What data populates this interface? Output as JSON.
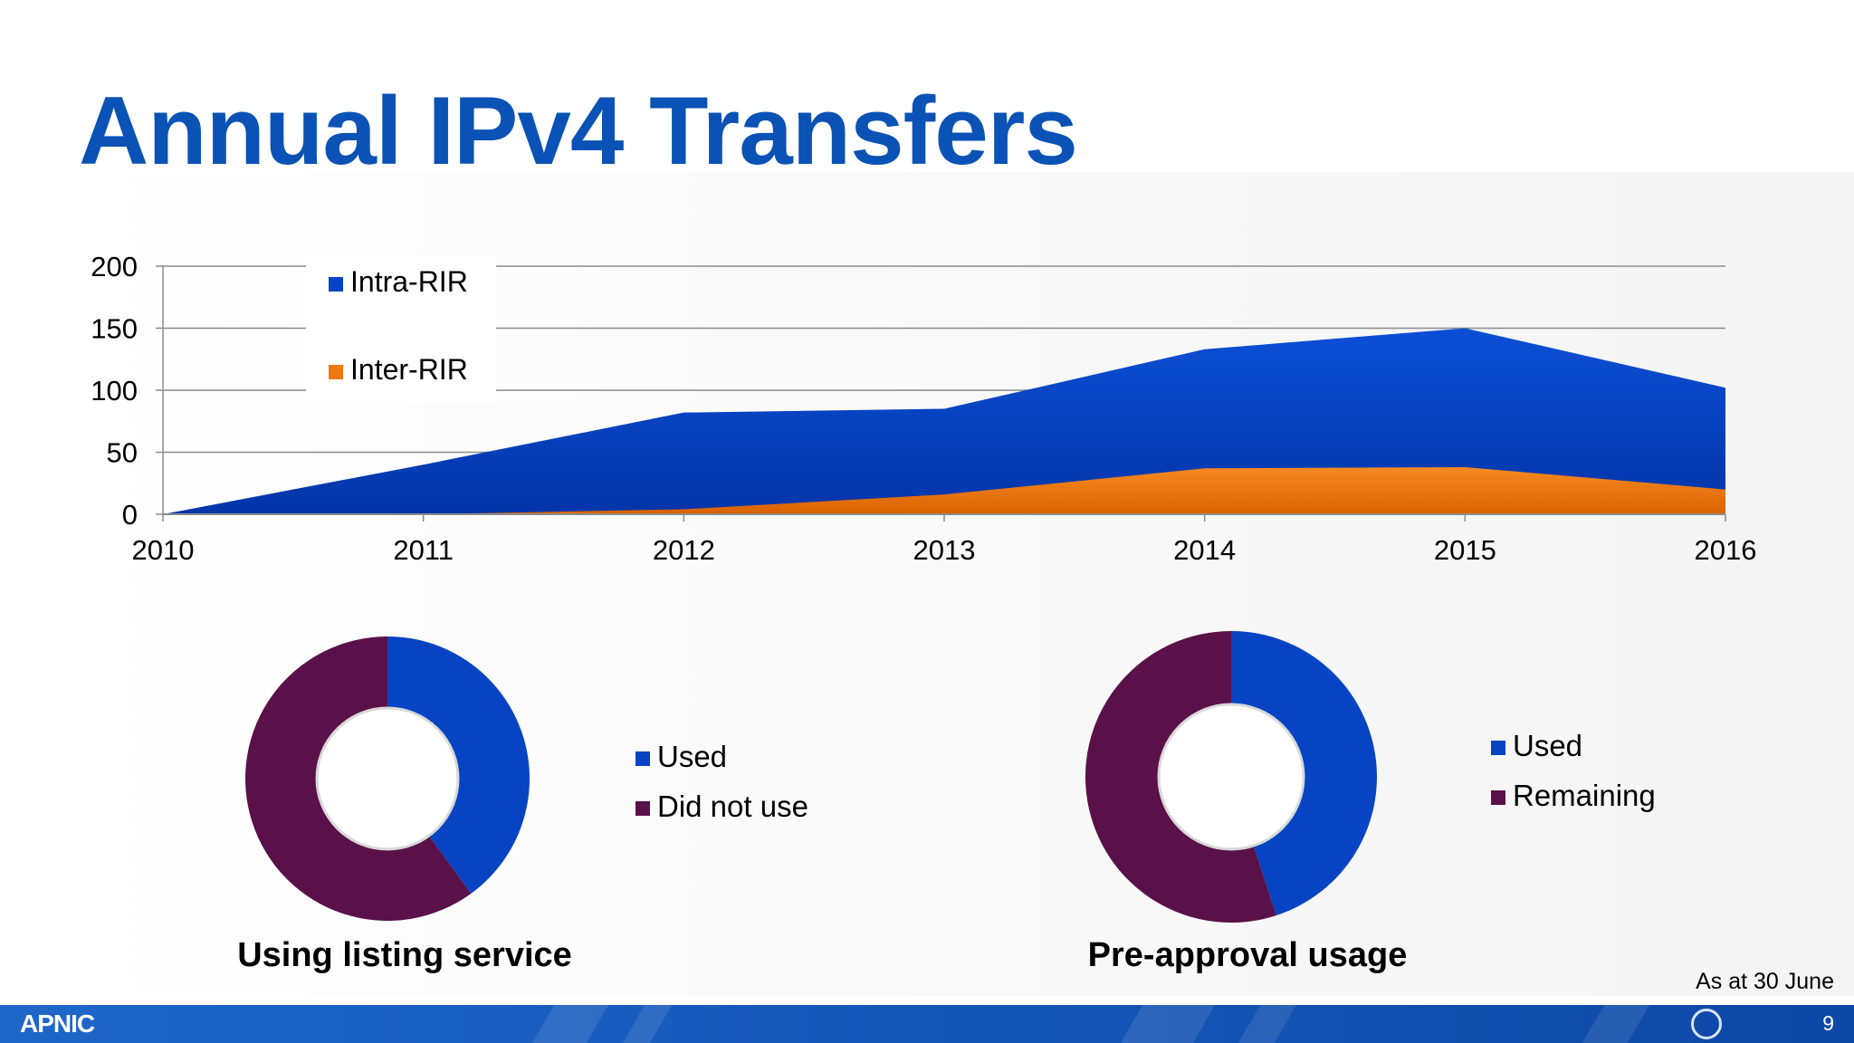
{
  "slide": {
    "title": "Annual IPv4 Transfers",
    "note": "As at 30 June",
    "footer": {
      "logo": "APNIC",
      "page_number": "9"
    }
  },
  "colors": {
    "title": "#0a52b5",
    "intra": "#0744c4",
    "inter": "#f07a10",
    "used": "#0744c4",
    "other": "#5a1048",
    "footer": "#1456b8"
  },
  "chart_data": [
    {
      "type": "area",
      "title": "",
      "x": [
        2010,
        2011,
        2012,
        2013,
        2014,
        2015,
        2016
      ],
      "series": [
        {
          "name": "Intra-RIR",
          "values": [
            0,
            40,
            82,
            85,
            133,
            150,
            102
          ],
          "color": "#0744c4"
        },
        {
          "name": "Inter-RIR",
          "values": [
            0,
            0,
            4,
            16,
            37,
            38,
            20
          ],
          "color": "#f07a10"
        }
      ],
      "ylim": [
        0,
        200
      ],
      "yticks": [
        0,
        50,
        100,
        150,
        200
      ],
      "grid": true,
      "legend": "top-left"
    },
    {
      "type": "pie",
      "style": "donut",
      "title": "Using listing service",
      "labels": [
        "Used",
        "Did not use"
      ],
      "values": [
        40,
        60
      ],
      "colors": [
        "#0744c4",
        "#5a1048"
      ],
      "legend": "right"
    },
    {
      "type": "pie",
      "style": "donut",
      "title": "Pre-approval usage",
      "labels": [
        "Used",
        "Remaining"
      ],
      "values": [
        45,
        55
      ],
      "colors": [
        "#0744c4",
        "#5a1048"
      ],
      "legend": "right"
    }
  ]
}
